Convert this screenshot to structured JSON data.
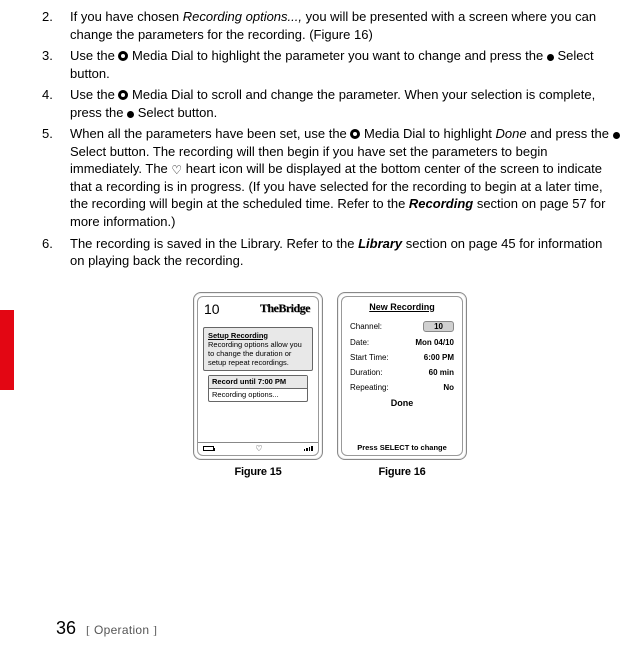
{
  "steps": [
    {
      "n": "2.",
      "parts": [
        {
          "t": "text",
          "v": "If you have chosen "
        },
        {
          "t": "ital",
          "v": "Recording options...,"
        },
        {
          "t": "text",
          "v": " you will be presented with a screen where you can change the parameters for the recording. (Figure 16)"
        }
      ]
    },
    {
      "n": "3.",
      "parts": [
        {
          "t": "text",
          "v": "Use the "
        },
        {
          "t": "dial"
        },
        {
          "t": "text",
          "v": " Media Dial to highlight the parameter you want to change and press the "
        },
        {
          "t": "select"
        },
        {
          "t": "text",
          "v": " Select button."
        }
      ]
    },
    {
      "n": "4.",
      "parts": [
        {
          "t": "text",
          "v": "Use the "
        },
        {
          "t": "dial"
        },
        {
          "t": "text",
          "v": " Media Dial to scroll and change the parameter. When your selection is com­plete, press the "
        },
        {
          "t": "select"
        },
        {
          "t": "text",
          "v": " Select button."
        }
      ]
    },
    {
      "n": "5.",
      "parts": [
        {
          "t": "text",
          "v": "When all the parameters have been set, use the "
        },
        {
          "t": "dial"
        },
        {
          "t": "text",
          "v": " Media Dial to highlight "
        },
        {
          "t": "ital",
          "v": "Done"
        },
        {
          "t": "text",
          "v": " and press the "
        },
        {
          "t": "select"
        },
        {
          "t": "text",
          "v": " Select button. The recording will then begin if you have set the parameters to begin immediately. The "
        },
        {
          "t": "heart"
        },
        {
          "t": "text",
          "v": " heart icon will be displayed at the bottom center of the screen to indicate that a recording is in progress. (If you have selected for the record­ing to begin at a later time, the recording will begin at the scheduled time. Refer to the "
        },
        {
          "t": "boldital",
          "v": "Recording"
        },
        {
          "t": "text",
          "v": " section on page 57 for more information.)"
        }
      ]
    },
    {
      "n": "6.",
      "parts": [
        {
          "t": "text",
          "v": "The recording is saved in the Library. Refer to the "
        },
        {
          "t": "boldital",
          "v": "Library"
        },
        {
          "t": "text",
          "v": " section on page 45 for infor­mation on playing back the recording."
        }
      ]
    }
  ],
  "fig15": {
    "caption": "Figure 15",
    "channel": "10",
    "logo": "TheBridge",
    "box_title": "Setup Recording",
    "box_body": "Recording options allow you to change the duration or setup repeat recordings.",
    "opt1": "Record until 7:00 PM",
    "opt2": "Recording options...",
    "heart": "♡"
  },
  "fig16": {
    "caption": "Figure 16",
    "title": "New Recording",
    "rows": [
      {
        "k": "Channel:",
        "v": "10",
        "pill": true
      },
      {
        "k": "Date:",
        "v": "Mon 04/10"
      },
      {
        "k": "Start Time:",
        "v": "6:00 PM"
      },
      {
        "k": "Duration:",
        "v": "60 min"
      },
      {
        "k": "Repeating:",
        "v": "No"
      }
    ],
    "done": "Done",
    "foot": "Press SELECT to change"
  },
  "footer": {
    "page": "36",
    "lb": "[",
    "section": " Operation ",
    "rb": "]"
  }
}
